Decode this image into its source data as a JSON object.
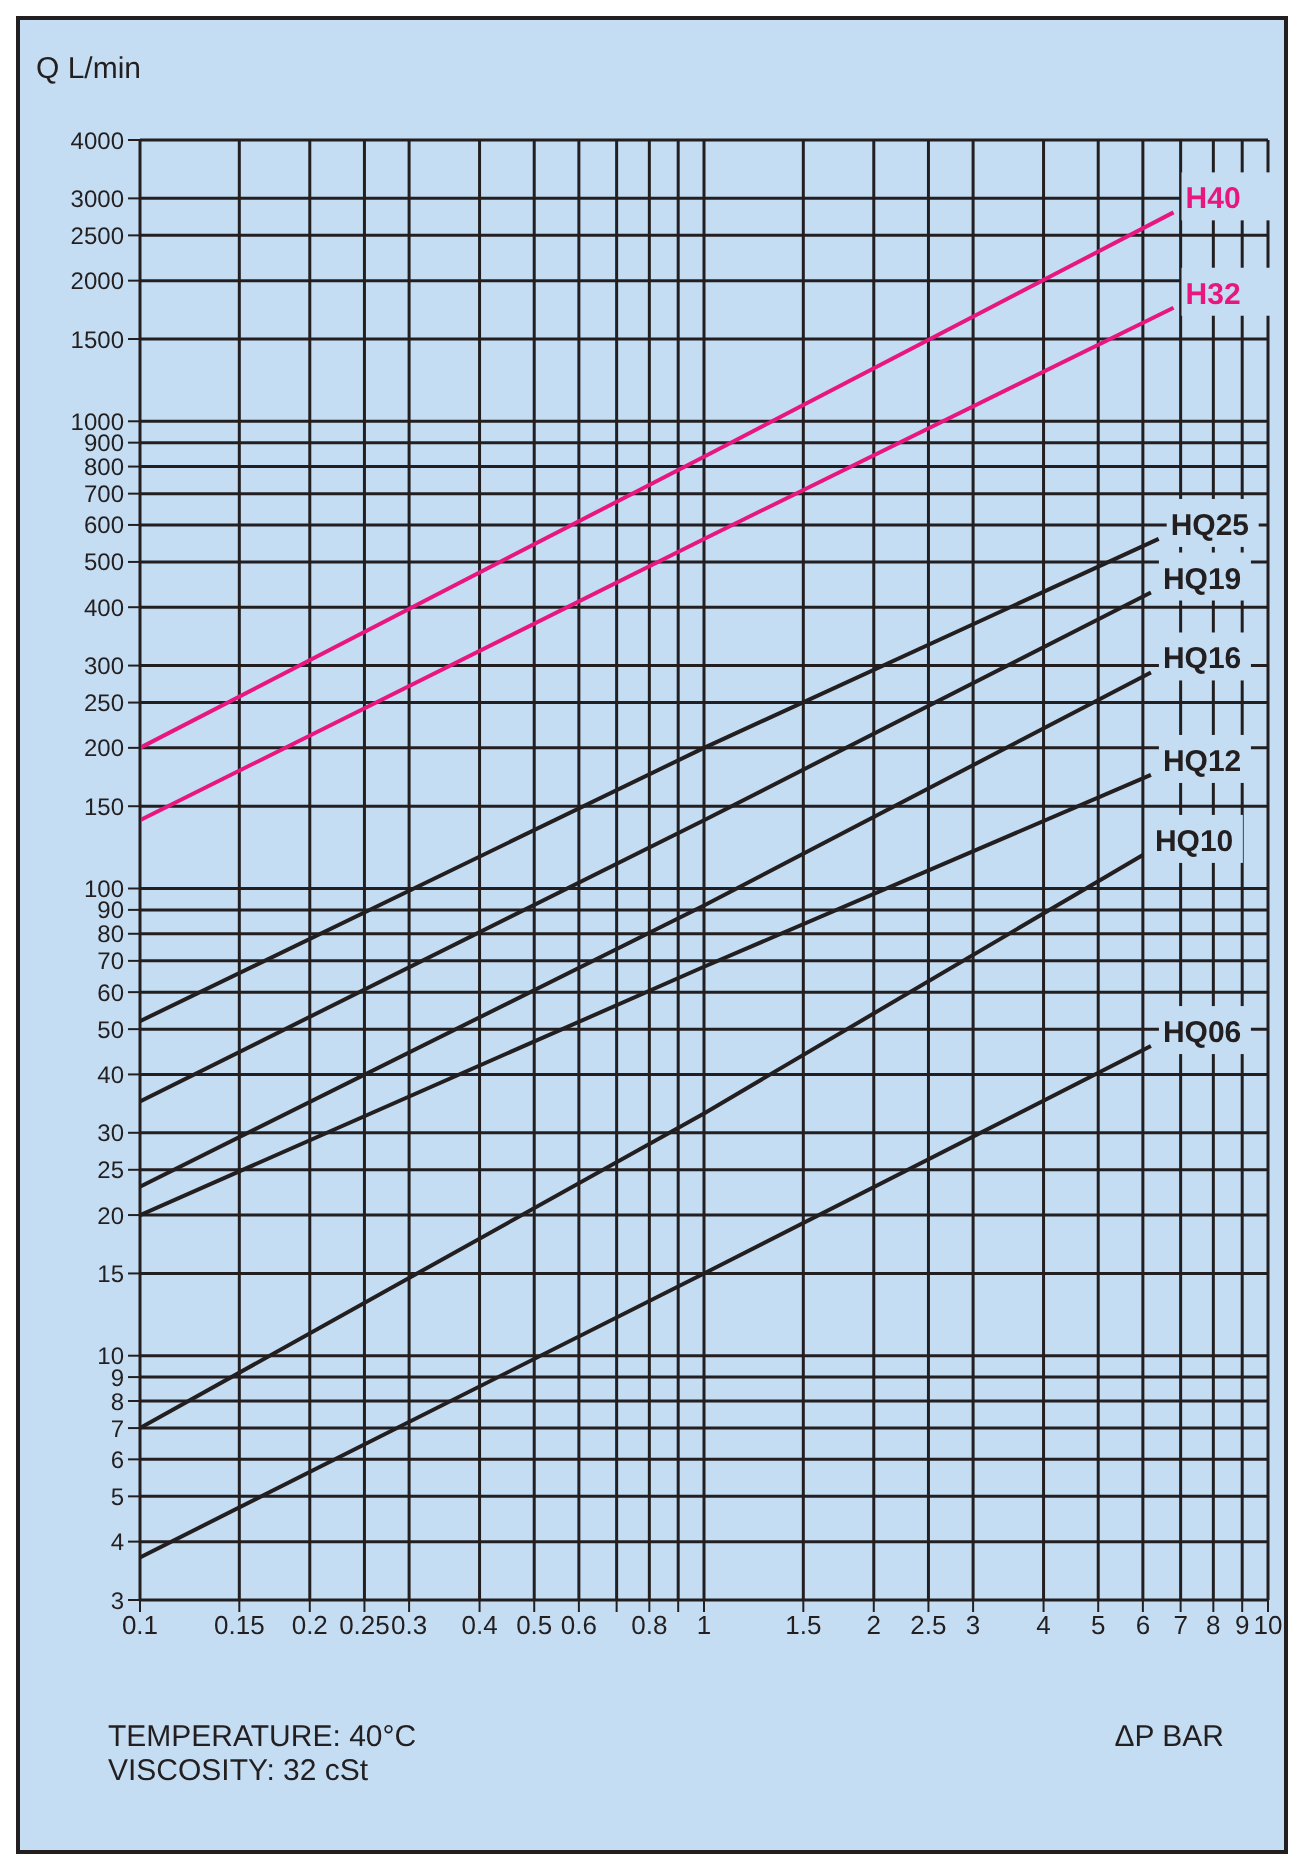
{
  "chart_data": {
    "type": "line",
    "xlabel": "ΔP BAR",
    "ylabel": "Q L/min",
    "log": "xy",
    "grid": true,
    "marker": "none",
    "line_style": "solid",
    "xlim": [
      0.1,
      10
    ],
    "xticks": [
      0.1,
      0.15,
      0.2,
      0.25,
      0.3,
      0.4,
      0.5,
      0.6,
      {
        "value": 0.7,
        "label": null
      },
      0.8,
      {
        "value": 0.9,
        "label": null
      },
      1,
      1.5,
      2,
      2.5,
      3,
      4,
      5,
      6,
      7,
      8,
      9,
      10
    ],
    "ylim": [
      3,
      4000
    ],
    "yticks": [
      3,
      4,
      5,
      6,
      7,
      8,
      9,
      10,
      15,
      20,
      25,
      30,
      40,
      50,
      60,
      70,
      80,
      90,
      100,
      150,
      200,
      250,
      300,
      400,
      500,
      600,
      700,
      800,
      900,
      1000,
      1500,
      2000,
      2500,
      3000,
      4000
    ],
    "series": [
      {
        "name": "H40",
        "color": "#e8177f",
        "x": [
          0.1,
          1,
          6.8
        ],
        "values": [
          200,
          840,
          2800
        ]
      },
      {
        "name": "H32",
        "color": "#e8177f",
        "x": [
          0.1,
          1,
          6.8
        ],
        "values": [
          140,
          560,
          1750
        ]
      },
      {
        "name": "HQ25",
        "color": "#231f20",
        "x": [
          0.1,
          1,
          6.4
        ],
        "values": [
          52,
          200,
          560
        ]
      },
      {
        "name": "HQ19",
        "color": "#231f20",
        "x": [
          0.1,
          1,
          6.2
        ],
        "values": [
          35,
          140,
          430
        ]
      },
      {
        "name": "HQ16",
        "color": "#231f20",
        "x": [
          0.1,
          1,
          6.2
        ],
        "values": [
          23,
          92,
          290
        ]
      },
      {
        "name": "HQ12",
        "color": "#231f20",
        "x": [
          0.1,
          1,
          6.2
        ],
        "values": [
          20,
          68,
          175
        ]
      },
      {
        "name": "HQ10",
        "color": "#231f20",
        "x": [
          0.1,
          1,
          6
        ],
        "values": [
          7,
          33,
          118
        ]
      },
      {
        "name": "HQ06",
        "color": "#231f20",
        "x": [
          0.1,
          1,
          6.2
        ],
        "values": [
          3.7,
          15,
          46
        ]
      }
    ],
    "annotations": [
      "TEMPERATURE: 40°C",
      "VISCOSITY: 32 cSt"
    ]
  }
}
